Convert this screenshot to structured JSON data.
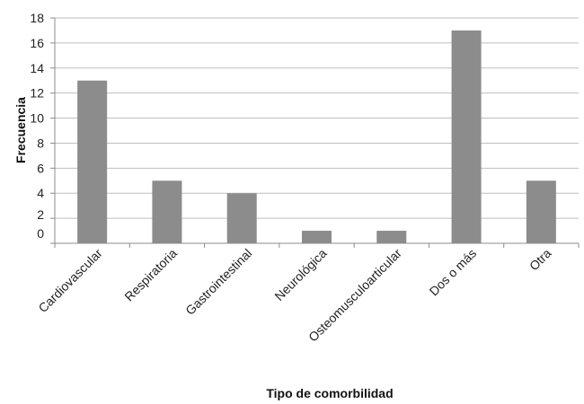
{
  "chart_data": {
    "type": "bar",
    "categories": [
      "Cardiovascular",
      "Respiratoria",
      "Gastrointestinal",
      "Neurológica",
      "Osteomusculoarticular",
      "Dos o más",
      "Otra"
    ],
    "values": [
      13,
      5,
      4,
      1,
      1,
      17,
      5
    ],
    "xlabel": "Tipo de comorbilidad",
    "ylabel": "Frecuencia",
    "ylim": [
      0,
      18
    ],
    "yticks": [
      "0",
      "2",
      "4",
      "6",
      "8",
      "10",
      "12",
      "14",
      "16",
      "18"
    ],
    "grid": true,
    "legend": "none",
    "colors": {
      "bar": "#8c8c8c",
      "grid": "#bfbfbf",
      "axis": "#8c8c8c"
    }
  }
}
